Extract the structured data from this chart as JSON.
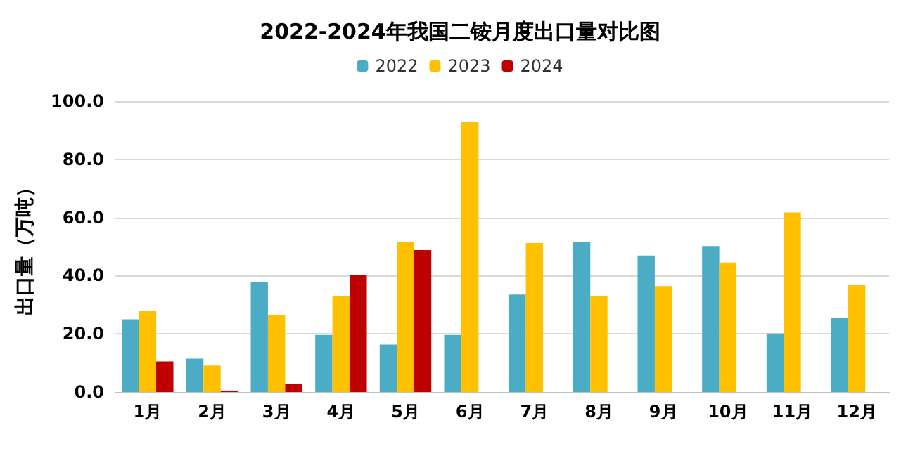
{
  "chart_data": {
    "type": "bar",
    "title": "2022-2024年我国二铵月度出口量对比图",
    "ylabel": "出口量（万吨）",
    "categories": [
      "1月",
      "2月",
      "3月",
      "4月",
      "5月",
      "6月",
      "7月",
      "8月",
      "9月",
      "10月",
      "11月",
      "12月"
    ],
    "series": [
      {
        "name": "2022",
        "color": "#4bacc6",
        "values": [
          25,
          11.5,
          37.8,
          19.6,
          16.3,
          19.6,
          33.5,
          51.7,
          46.9,
          50.2,
          20.1,
          25.4
        ]
      },
      {
        "name": "2023",
        "color": "#ffc000",
        "values": [
          27.8,
          9.1,
          26.3,
          33,
          51.7,
          92.8,
          51.2,
          33,
          36.4,
          44.5,
          61.7,
          36.8
        ]
      },
      {
        "name": "2024",
        "color": "#c00000",
        "values": [
          10.5,
          0.5,
          2.9,
          40.2,
          48.8,
          null,
          null,
          null,
          null,
          null,
          null,
          null
        ]
      }
    ],
    "ylim": [
      0,
      100
    ],
    "yticks": [
      {
        "value": 0,
        "label": "0.0"
      },
      {
        "value": 20,
        "label": "20.0"
      },
      {
        "value": 40,
        "label": "40.0"
      },
      {
        "value": 60,
        "label": "60.0"
      },
      {
        "value": 80,
        "label": "80.0"
      },
      {
        "value": 100,
        "label": "100.0"
      }
    ],
    "grid": "y",
    "legend": "top"
  }
}
